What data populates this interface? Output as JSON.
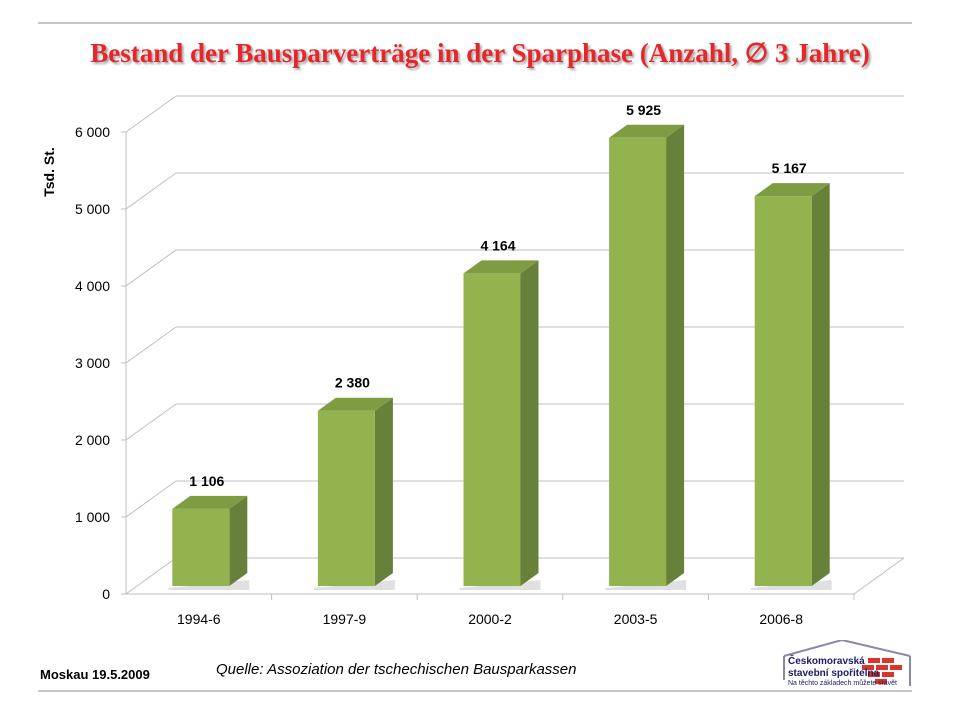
{
  "title": "Bestand der Bausparverträge in der Sparphase (Anzahl, ∅ 3 Jahre)",
  "footer": {
    "date": "Moskau  19.5.2009",
    "source": "Quelle: Assoziation der tschechischen Bausparkassen"
  },
  "logo": {
    "name_line1": "Českomoravská",
    "name_line2": "stavební spořitelna",
    "slogan": "Na těchto základech můžete stavět"
  },
  "colors": {
    "title": "#e8262a",
    "bar_front": "#93b34f",
    "bar_side": "#67803a",
    "bar_top": "#7e9c42",
    "logo_red": "#d9362b",
    "logo_navy": "#1b1b66"
  },
  "chart_data": {
    "type": "bar",
    "style": "3d-column",
    "categories": [
      "1994-6",
      "1997-9",
      "2000-2",
      "2003-5",
      "2006-8"
    ],
    "values": [
      1106,
      2380,
      4164,
      5925,
      5167
    ],
    "data_labels": [
      "1 106",
      "2 380",
      "4 164",
      "5 925",
      "5 167"
    ],
    "ylabel": "Tsd. St.",
    "ylim": [
      0,
      6000
    ],
    "yticks": [
      0,
      1000,
      2000,
      3000,
      4000,
      5000,
      6000
    ],
    "ytick_labels": [
      "0",
      "1 000",
      "2 000",
      "3 000",
      "4 000",
      "5 000",
      "6 000"
    ],
    "grid": true,
    "legend": false
  }
}
